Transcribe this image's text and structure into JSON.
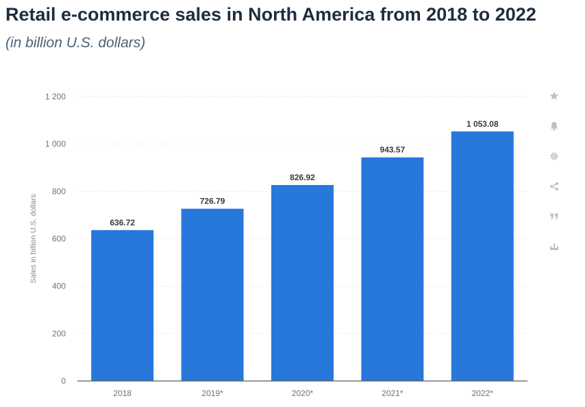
{
  "title": "Retail e-commerce sales in North America from 2018 to 2022",
  "subtitle": "(in billion U.S. dollars)",
  "colors": {
    "bar": "#2878dc",
    "axis": "#5a5a5a",
    "grid": "#e6e6e6",
    "tick_text": "#707070",
    "label_text": "#3a3a3a",
    "icon": "#b9c1c9"
  },
  "toolbar": {
    "icons": [
      "star-icon",
      "bell-icon",
      "gear-icon",
      "share-icon",
      "quote-icon",
      "print-icon"
    ]
  },
  "chart_data": {
    "type": "bar",
    "title": "Retail e-commerce sales in North America from 2018 to 2022",
    "subtitle": "(in billion U.S. dollars)",
    "xlabel": "",
    "ylabel": "Sales in billion U.S. dollars",
    "categories": [
      "2018",
      "2019*",
      "2020*",
      "2021*",
      "2022*"
    ],
    "values": [
      636.72,
      726.79,
      826.92,
      943.57,
      1053.08
    ],
    "value_labels": [
      "636.72",
      "726.79",
      "826.92",
      "943.57",
      "1 053.08"
    ],
    "yticks": [
      0,
      200,
      400,
      600,
      800,
      1000,
      1200
    ],
    "ytick_labels": [
      "0",
      "200",
      "400",
      "600",
      "800",
      "1 000",
      "1 200"
    ],
    "ylim": [
      0,
      1200
    ],
    "grid": true,
    "legend": "none"
  }
}
